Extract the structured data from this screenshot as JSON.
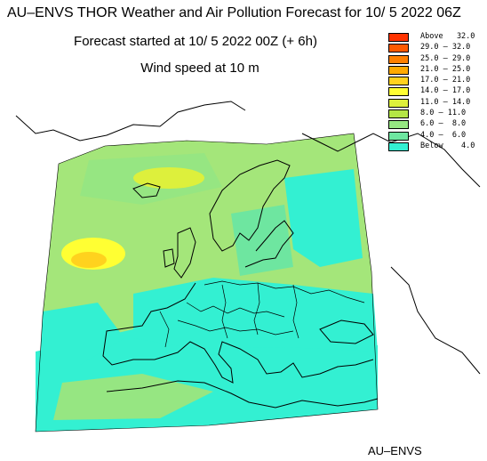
{
  "header": {
    "title": "AU–ENVS THOR Weather and Air Pollution Forecast for 10/ 5 2022  06Z",
    "forecast_start": "Forecast started at 10/ 5 2022  00Z (+ 6h)",
    "variable": "Wind speed at 10 m"
  },
  "footer": {
    "credit": "AU–ENVS"
  },
  "legend": {
    "items": [
      {
        "label": "Above   32.0",
        "color": "#ff3300"
      },
      {
        "label": "29.0 – 32.0",
        "color": "#ff5a00"
      },
      {
        "label": "25.0 – 29.0",
        "color": "#ff8000"
      },
      {
        "label": "21.0 – 25.0",
        "color": "#ffaa00"
      },
      {
        "label": "17.0 – 21.0",
        "color": "#ffd21e"
      },
      {
        "label": "14.0 – 17.0",
        "color": "#ffff33"
      },
      {
        "label": "11.0 – 14.0",
        "color": "#ddf03c"
      },
      {
        "label": "8.0 – 11.0",
        "color": "#b4e646"
      },
      {
        "label": "6.0 –  8.0",
        "color": "#96e682"
      },
      {
        "label": "4.0 –  6.0",
        "color": "#6ee6a0"
      },
      {
        "label": "Below    4.0",
        "color": "#33f0d2"
      }
    ]
  },
  "colors": {
    "domain_base": "#a4e67a",
    "calm": "#33f0d2",
    "strong": "#ffff33"
  }
}
